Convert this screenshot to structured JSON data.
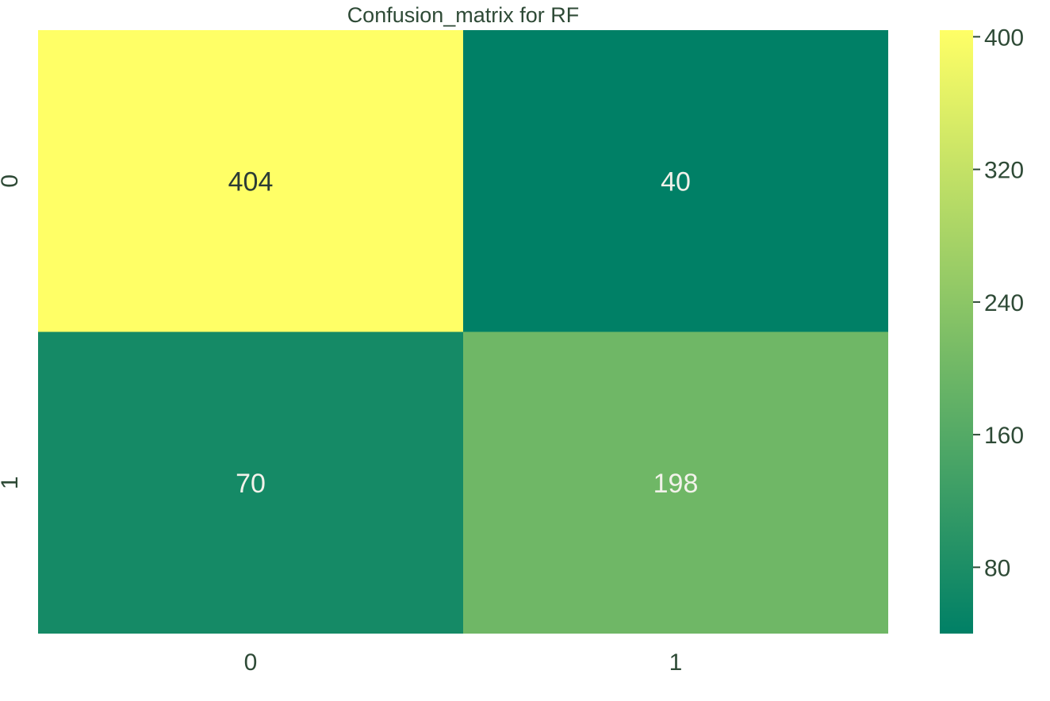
{
  "chart_data": {
    "type": "heatmap",
    "title": "Confusion_matrix for RF",
    "xlabel": "",
    "ylabel": "",
    "x_categories": [
      "0",
      "1"
    ],
    "y_categories": [
      "0",
      "1"
    ],
    "values": [
      [
        404,
        40
      ],
      [
        70,
        198
      ]
    ],
    "colormap": "summer",
    "color_low": "#008066",
    "color_high": "#ffff66",
    "value_range": [
      40,
      404
    ],
    "colorbar_ticks": [
      80,
      160,
      240,
      320,
      400
    ],
    "colorbar": true,
    "grid": false
  }
}
